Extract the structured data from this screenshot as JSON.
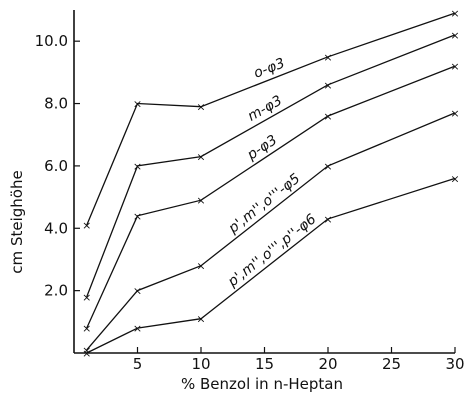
{
  "chart_data": {
    "type": "line",
    "title": "",
    "xlabel": "% Benzol in n-Heptan",
    "ylabel": "cm Steighöhe",
    "xlim": [
      0,
      30
    ],
    "ylim": [
      0,
      11
    ],
    "x_ticks": [
      "5",
      "10",
      "15",
      "20",
      "25",
      "30"
    ],
    "y_ticks": [
      "2.0",
      "4.0",
      "6.0",
      "8.0",
      "10.0"
    ],
    "x_tick_values": [
      5,
      10,
      15,
      20,
      25,
      30
    ],
    "y_tick_values": [
      2,
      4,
      6,
      8,
      10
    ],
    "grid": false,
    "marker": "x",
    "x": [
      1,
      5,
      10,
      20,
      30
    ],
    "series": [
      {
        "name": "o-φ3",
        "values": [
          4.1,
          8.0,
          7.9,
          9.5,
          10.9
        ]
      },
      {
        "name": "m-φ3",
        "values": [
          1.8,
          6.0,
          6.3,
          8.6,
          10.2
        ]
      },
      {
        "name": "p-φ3",
        "values": [
          0.8,
          4.4,
          4.9,
          7.6,
          9.2
        ]
      },
      {
        "name": "p',m'',o'''-φ5",
        "values": [
          0.1,
          2.0,
          2.8,
          6.0,
          7.7
        ]
      },
      {
        "name": "p',m'',o''',p''-φ6",
        "values": [
          0.0,
          0.8,
          1.1,
          4.3,
          5.6
        ]
      }
    ]
  }
}
